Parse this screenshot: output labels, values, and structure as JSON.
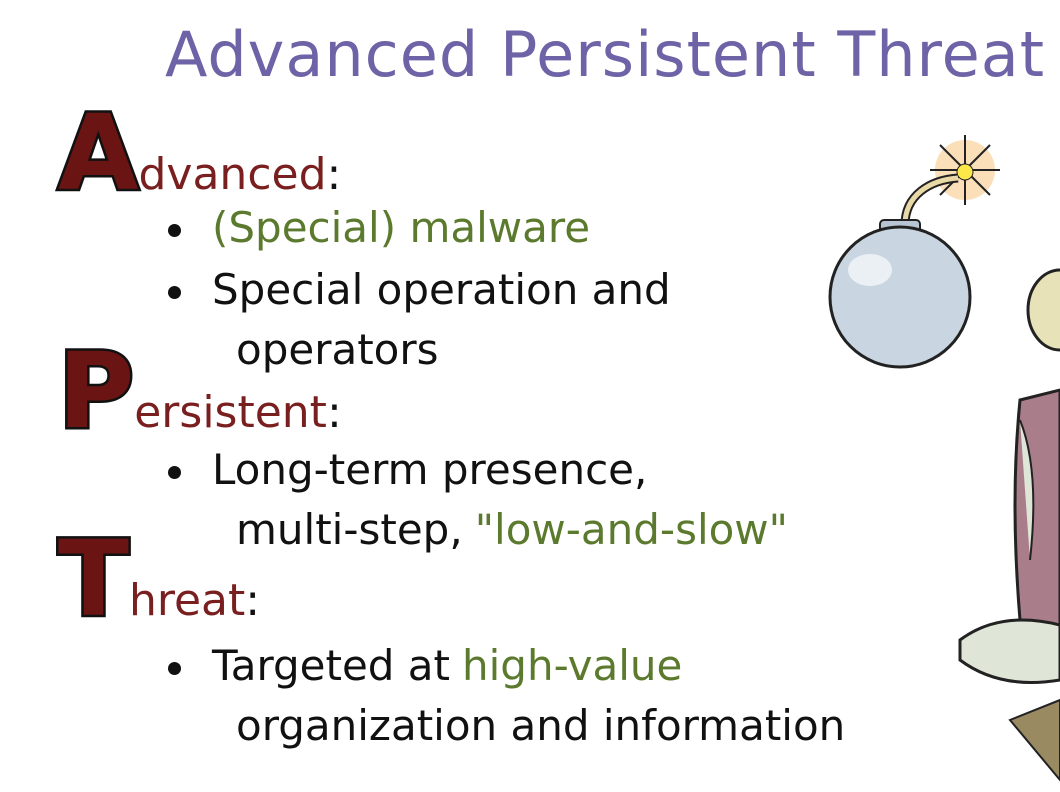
{
  "title": "Advanced Persistent Threat",
  "sections": [
    {
      "letter": "A",
      "rest": "dvanced",
      "colon": ":",
      "bullets": [
        {
          "lines": [
            [
              {
                "text": "(Special) malware",
                "color": "#5b7a2e"
              }
            ]
          ]
        },
        {
          "lines": [
            [
              {
                "text": "Special operation and",
                "color": "#111111"
              }
            ],
            [
              {
                "text": "operators",
                "color": "#111111"
              }
            ]
          ]
        }
      ]
    },
    {
      "letter": "P",
      "rest": "ersistent",
      "colon": ":",
      "bullets": [
        {
          "lines": [
            [
              {
                "text": "Long-term presence,",
                "color": "#111111"
              }
            ],
            [
              {
                "text": "multi-step,",
                "color": "#111111"
              },
              {
                "text": "\"low-and-slow\"",
                "color": "#5b7a2e"
              }
            ]
          ]
        }
      ]
    },
    {
      "letter": "T",
      "rest": "hreat",
      "colon": ":",
      "bullets": [
        {
          "lines": [
            [
              {
                "text": "Targeted at",
                "color": "#111111"
              },
              {
                "text": "high-value",
                "color": "#5b7a2e"
              }
            ],
            [
              {
                "text": "organization and information",
                "color": "#111111"
              }
            ]
          ]
        }
      ]
    }
  ]
}
